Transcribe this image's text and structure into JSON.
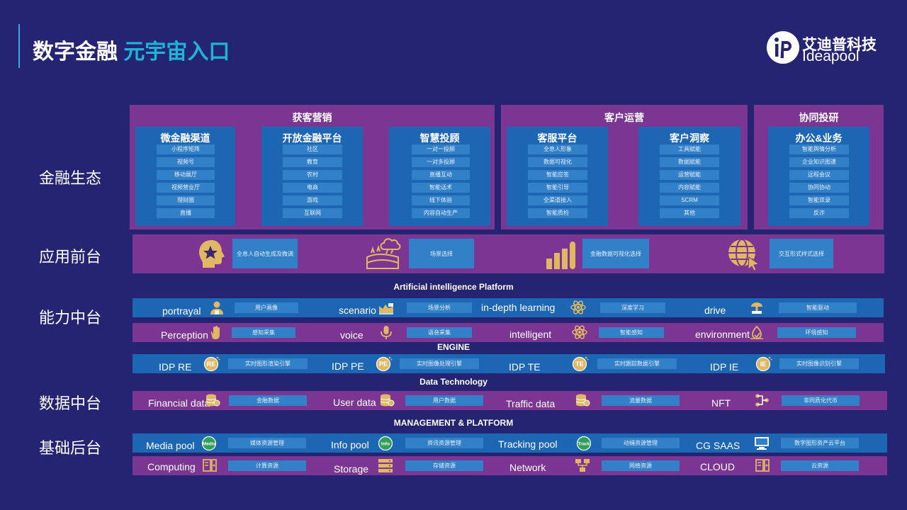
{
  "header": {
    "title_main": "数字金融",
    "title_accent": "元宇宙入口",
    "logo_cn": "艾迪普科技",
    "logo_en": "Ideapool"
  },
  "row_labels": {
    "ecosystem": "金融生态",
    "frontend": "应用前台",
    "capability": "能力中台",
    "data": "数据中台",
    "backend": "基础后台"
  },
  "ecosystem": {
    "panels": [
      {
        "title": "获客营销",
        "cards": [
          {
            "title": "微金融渠道",
            "items": [
              "小程序矩阵",
              "视频号",
              "移动展厅",
              "视频营业厅",
              "理财圈",
              "直播"
            ]
          },
          {
            "title": "开放金融平台",
            "items": [
              "社区",
              "教育",
              "农村",
              "电商",
              "游戏",
              "互联网"
            ]
          },
          {
            "title": "智慧投顾",
            "items": [
              "一对一投顾",
              "一对多投顾",
              "直播互动",
              "智能话术",
              "线下体验",
              "内容自动生产"
            ]
          }
        ]
      },
      {
        "title": "客户运营",
        "cards": [
          {
            "title": "客服平台",
            "items": [
              "全息人形象",
              "数据可视化",
              "智能应答",
              "智能引导",
              "全渠道接入",
              "智能质检"
            ]
          },
          {
            "title": "客户洞察",
            "items": [
              "工具赋能",
              "数据赋能",
              "运营赋能",
              "内容赋能",
              "SCRM",
              "其他"
            ]
          }
        ]
      },
      {
        "title": "协同投研",
        "cards": [
          {
            "title": "办公&业务",
            "items": [
              "智能舆情分析",
              "企业知识图谱",
              "远程会议",
              "协同协动",
              "智能双录",
              "反诈"
            ]
          }
        ]
      }
    ]
  },
  "frontend": {
    "boxes": [
      {
        "icon": "head-star-icon",
        "text": "全息人自动生成及微调"
      },
      {
        "icon": "landscape-icon",
        "text": "场景选择"
      },
      {
        "icon": "bar-chart-icon",
        "text": "金融数据可视化选择"
      },
      {
        "icon": "globe-cursor-icon",
        "text": "交互形式样式选择"
      }
    ]
  },
  "sections": {
    "ai": "Artificial  intelligence Platform",
    "engine": "ENGINE",
    "data_tech": "Data Technology",
    "mgmt": "MANAGEMENT & PLATFORM"
  },
  "strips": {
    "ai_row1": [
      {
        "label": "portrayal",
        "icon": "person-icon",
        "pill": "用户画像"
      },
      {
        "label": "scenario",
        "icon": "scenario-icon",
        "pill": "场景分析"
      },
      {
        "label": "in-depth learning",
        "icon": "atom-icon",
        "pill": "深度学习"
      },
      {
        "label": "drive",
        "icon": "drive-icon",
        "pill": "智能驱动"
      }
    ],
    "ai_row2": [
      {
        "label": "Perception",
        "icon": "hand-icon",
        "pill": "感知采集"
      },
      {
        "label": "voice",
        "icon": "microphone-icon",
        "pill": "语音采集"
      },
      {
        "label": "intelligent",
        "icon": "atom-icon",
        "pill": "智能感知"
      },
      {
        "label": "environment",
        "icon": "environment-icon",
        "pill": "环境感知"
      }
    ],
    "engine": [
      {
        "label": "IDP RE",
        "badge": "RE",
        "pill": "实时图形渲染引擎"
      },
      {
        "label": "IDP PE",
        "badge": "PE",
        "pill": "实时图像处理引擎"
      },
      {
        "label": "IDP TE",
        "badge": "TE",
        "pill": "实时跟踪数据引擎"
      },
      {
        "label": "IDP IE",
        "badge": "IE",
        "pill": "实时图像识别引擎"
      }
    ],
    "data": [
      {
        "label": "Financial data",
        "icon": "database-icon",
        "pill": "金融数据"
      },
      {
        "label": "User data",
        "icon": "database-icon",
        "pill": "用户数据"
      },
      {
        "label": "Traffic data",
        "icon": "database-icon",
        "pill": "流量数据"
      },
      {
        "label": "NFT",
        "icon": "nodes-icon",
        "pill": "非同质化代币"
      }
    ],
    "mgmt1": [
      {
        "label": "Media pool",
        "badge": "Media",
        "pill": "媒体资源管理"
      },
      {
        "label": "Info pool",
        "badge": "Info",
        "pill": "资讯资源管理"
      },
      {
        "label": "Tracking pool",
        "badge": "Track",
        "pill": "动捕资源管理"
      },
      {
        "label": "CG SAAS",
        "icon": "monitor-icon",
        "pill": "数字图形资产云平台"
      }
    ],
    "mgmt2": [
      {
        "label": "Computing",
        "icon": "computing-icon",
        "pill": "计算资源"
      },
      {
        "label": "Storage",
        "icon": "storage-icon",
        "pill": "存储资源"
      },
      {
        "label": "Network",
        "icon": "network-icon",
        "pill": "网络资源"
      },
      {
        "label": "CLOUD",
        "icon": "computing-icon",
        "pill": "云资源"
      }
    ]
  },
  "colors": {
    "background": "#242472",
    "purple": "#7b3592",
    "blue": "#1d66b3",
    "pill": "#3180c8",
    "accent": "#1eb4d8",
    "icon_gold": "#e0b864",
    "badge_green": "#2f9f5a"
  }
}
